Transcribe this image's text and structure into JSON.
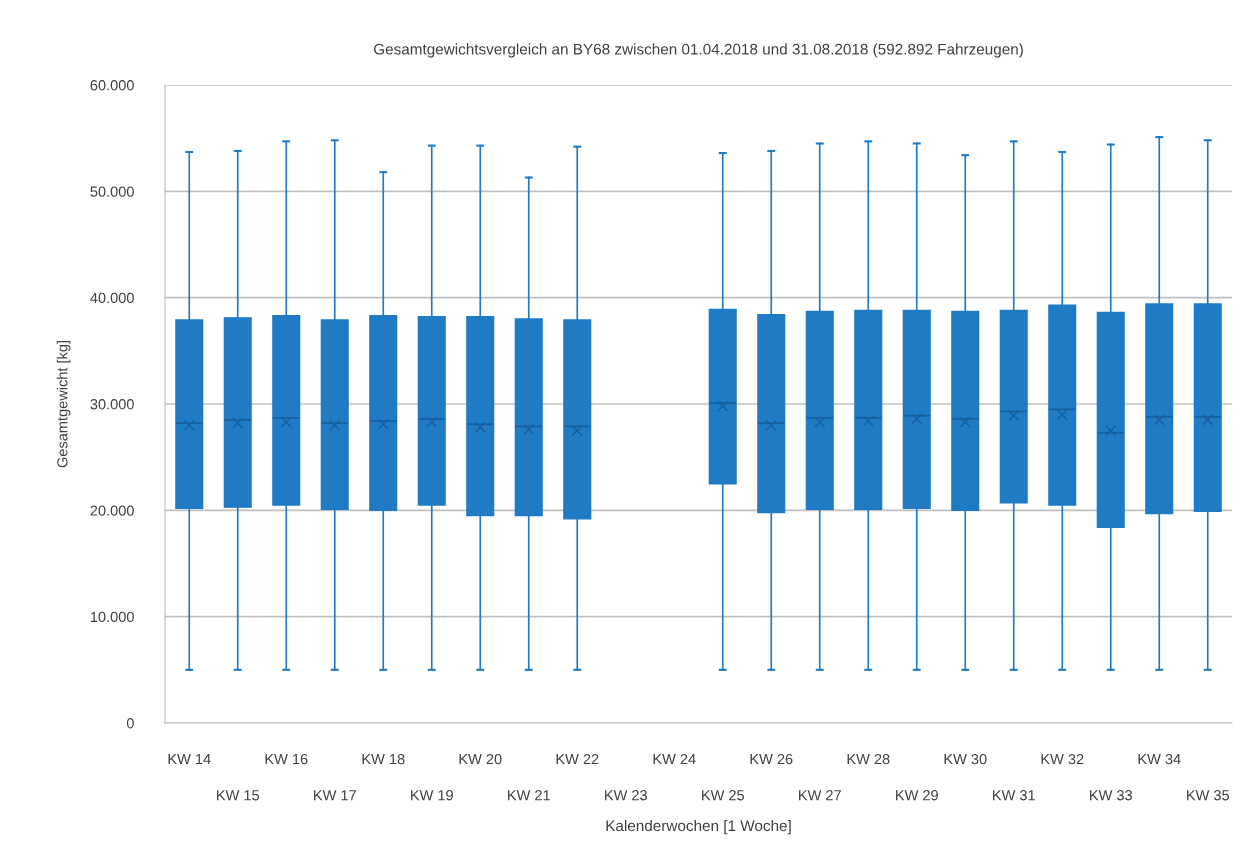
{
  "chart_data": {
    "type": "box",
    "title": "Gesamtgewichtsvergleich an BY68 zwischen 01.04.2018 und 31.08.2018 (592.892 Fahrzeugen)",
    "xlabel": "Kalenderwochen [1 Woche]",
    "ylabel": "Gesamtgewicht [kg]",
    "categories": [
      "KW 14",
      "KW 15",
      "KW 16",
      "KW 17",
      "KW 18",
      "KW 19",
      "KW 20",
      "KW 21",
      "KW 22",
      "KW 23",
      "KW 24",
      "KW 25",
      "KW 26",
      "KW 27",
      "KW 28",
      "KW 29",
      "KW 30",
      "KW 31",
      "KW 32",
      "KW 33",
      "KW 34",
      "KW 35"
    ],
    "series": [
      {
        "color": "#1f7bc4",
        "boxes": [
          {
            "low": 5000,
            "q1": 20200,
            "median": 28200,
            "q3": 37900,
            "high": 53700,
            "mean": 28000
          },
          {
            "low": 5000,
            "q1": 20300,
            "median": 28500,
            "q3": 38100,
            "high": 53800,
            "mean": 28200
          },
          {
            "low": 5000,
            "q1": 20500,
            "median": 28700,
            "q3": 38300,
            "high": 54700,
            "mean": 28300
          },
          {
            "low": 5000,
            "q1": 20100,
            "median": 28200,
            "q3": 37900,
            "high": 54800,
            "mean": 28000
          },
          {
            "low": 5000,
            "q1": 20000,
            "median": 28400,
            "q3": 38300,
            "high": 51800,
            "mean": 28100
          },
          {
            "low": 5000,
            "q1": 20500,
            "median": 28600,
            "q3": 38200,
            "high": 54300,
            "mean": 28300
          },
          {
            "low": 5000,
            "q1": 19500,
            "median": 28100,
            "q3": 38200,
            "high": 54300,
            "mean": 27800
          },
          {
            "low": 5000,
            "q1": 19500,
            "median": 27900,
            "q3": 38000,
            "high": 51300,
            "mean": 27600
          },
          {
            "low": 5000,
            "q1": 19200,
            "median": 27900,
            "q3": 37900,
            "high": 54200,
            "mean": 27500
          },
          null,
          null,
          {
            "low": 5000,
            "q1": 22500,
            "median": 30100,
            "q3": 38900,
            "high": 53600,
            "mean": 29800
          },
          {
            "low": 5000,
            "q1": 19800,
            "median": 28200,
            "q3": 38400,
            "high": 53800,
            "mean": 28000
          },
          {
            "low": 5000,
            "q1": 20100,
            "median": 28700,
            "q3": 38700,
            "high": 54500,
            "mean": 28300
          },
          {
            "low": 5000,
            "q1": 20100,
            "median": 28700,
            "q3": 38800,
            "high": 54700,
            "mean": 28400
          },
          {
            "low": 5000,
            "q1": 20200,
            "median": 28900,
            "q3": 38800,
            "high": 54500,
            "mean": 28600
          },
          {
            "low": 5000,
            "q1": 20000,
            "median": 28600,
            "q3": 38700,
            "high": 53400,
            "mean": 28300
          },
          {
            "low": 5000,
            "q1": 20700,
            "median": 29300,
            "q3": 38800,
            "high": 54700,
            "mean": 28900
          },
          {
            "low": 5000,
            "q1": 20500,
            "median": 29500,
            "q3": 39300,
            "high": 53700,
            "mean": 29000
          },
          {
            "low": 5000,
            "q1": 18400,
            "median": 27300,
            "q3": 38600,
            "high": 54400,
            "mean": 27500
          },
          {
            "low": 5000,
            "q1": 19700,
            "median": 28800,
            "q3": 39400,
            "high": 55100,
            "mean": 28500
          },
          {
            "low": 5000,
            "q1": 19900,
            "median": 28800,
            "q3": 39400,
            "high": 54800,
            "mean": 28500
          }
        ]
      }
    ],
    "ylim": [
      0,
      60000
    ],
    "yticks": [
      {
        "value": 0,
        "label": "0"
      },
      {
        "value": 10000,
        "label": "10.000"
      },
      {
        "value": 20000,
        "label": "20.000"
      },
      {
        "value": 30000,
        "label": "30.000"
      },
      {
        "value": 40000,
        "label": "40.000"
      },
      {
        "value": 50000,
        "label": "50.000"
      },
      {
        "value": 60000,
        "label": "60.000"
      }
    ],
    "grid": "y",
    "marker": "cross"
  }
}
